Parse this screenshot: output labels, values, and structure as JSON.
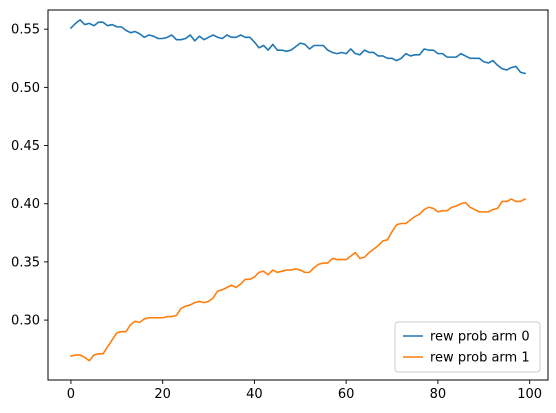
{
  "chart_data": {
    "type": "line",
    "title": "",
    "xlabel": "",
    "ylabel": "",
    "xlim": [
      -5,
      104
    ],
    "ylim": [
      0.2485,
      0.5665
    ],
    "xticks": [
      0,
      20,
      40,
      60,
      80,
      100
    ],
    "xtick_labels": [
      "0",
      "20",
      "40",
      "60",
      "80",
      "100"
    ],
    "yticks": [
      0.3,
      0.35,
      0.4,
      0.45,
      0.5,
      0.55
    ],
    "ytick_labels": [
      "0.30",
      "0.35",
      "0.40",
      "0.45",
      "0.50",
      "0.55"
    ],
    "legend": {
      "location": "lower-right"
    },
    "grid": false,
    "series": [
      {
        "name": "rew prob arm 0",
        "color": "#1f77b4",
        "x": [
          0,
          1,
          2,
          3,
          4,
          5,
          6,
          7,
          8,
          9,
          10,
          11,
          12,
          13,
          14,
          15,
          16,
          17,
          18,
          19,
          20,
          21,
          22,
          23,
          24,
          25,
          26,
          27,
          28,
          29,
          30,
          31,
          32,
          33,
          34,
          35,
          36,
          37,
          38,
          39,
          40,
          41,
          42,
          43,
          44,
          45,
          46,
          47,
          48,
          49,
          50,
          51,
          52,
          53,
          54,
          55,
          56,
          57,
          58,
          59,
          60,
          61,
          62,
          63,
          64,
          65,
          66,
          67,
          68,
          69,
          70,
          71,
          72,
          73,
          74,
          75,
          76,
          77,
          78,
          79,
          80,
          81,
          82,
          83,
          84,
          85,
          86,
          87,
          88,
          89,
          90,
          91,
          92,
          93,
          94,
          95,
          96,
          97,
          98,
          99
        ],
        "values": [
          0.551,
          0.555,
          0.558,
          0.554,
          0.555,
          0.553,
          0.556,
          0.556,
          0.553,
          0.554,
          0.552,
          0.552,
          0.549,
          0.547,
          0.548,
          0.546,
          0.543,
          0.545,
          0.544,
          0.542,
          0.542,
          0.543,
          0.545,
          0.541,
          0.541,
          0.542,
          0.545,
          0.54,
          0.544,
          0.541,
          0.543,
          0.545,
          0.543,
          0.542,
          0.545,
          0.543,
          0.543,
          0.545,
          0.543,
          0.543,
          0.539,
          0.534,
          0.536,
          0.532,
          0.537,
          0.532,
          0.532,
          0.531,
          0.532,
          0.535,
          0.538,
          0.537,
          0.533,
          0.536,
          0.536,
          0.536,
          0.532,
          0.53,
          0.529,
          0.53,
          0.529,
          0.533,
          0.529,
          0.528,
          0.532,
          0.53,
          0.53,
          0.527,
          0.527,
          0.525,
          0.525,
          0.523,
          0.525,
          0.529,
          0.527,
          0.528,
          0.528,
          0.533,
          0.532,
          0.532,
          0.529,
          0.529,
          0.526,
          0.526,
          0.526,
          0.529,
          0.527,
          0.525,
          0.525,
          0.525,
          0.522,
          0.521,
          0.523,
          0.519,
          0.516,
          0.515,
          0.517,
          0.518,
          0.513,
          0.512
        ]
      },
      {
        "name": "rew prob arm 1",
        "color": "#ff7f0e",
        "x": [
          0,
          1,
          2,
          3,
          4,
          5,
          6,
          7,
          8,
          9,
          10,
          11,
          12,
          13,
          14,
          15,
          16,
          17,
          18,
          19,
          20,
          21,
          22,
          23,
          24,
          25,
          26,
          27,
          28,
          29,
          30,
          31,
          32,
          33,
          34,
          35,
          36,
          37,
          38,
          39,
          40,
          41,
          42,
          43,
          44,
          45,
          46,
          47,
          48,
          49,
          50,
          51,
          52,
          53,
          54,
          55,
          56,
          57,
          58,
          59,
          60,
          61,
          62,
          63,
          64,
          65,
          66,
          67,
          68,
          69,
          70,
          71,
          72,
          73,
          74,
          75,
          76,
          77,
          78,
          79,
          80,
          81,
          82,
          83,
          84,
          85,
          86,
          87,
          88,
          89,
          90,
          91,
          92,
          93,
          94,
          95,
          96,
          97,
          98,
          99
        ],
        "values": [
          0.269,
          0.27,
          0.27,
          0.268,
          0.265,
          0.27,
          0.271,
          0.271,
          0.277,
          0.283,
          0.289,
          0.29,
          0.29,
          0.296,
          0.299,
          0.298,
          0.301,
          0.302,
          0.302,
          0.302,
          0.302,
          0.303,
          0.303,
          0.304,
          0.31,
          0.312,
          0.313,
          0.315,
          0.316,
          0.315,
          0.316,
          0.319,
          0.325,
          0.326,
          0.328,
          0.33,
          0.328,
          0.331,
          0.335,
          0.335,
          0.337,
          0.341,
          0.342,
          0.339,
          0.343,
          0.341,
          0.342,
          0.343,
          0.343,
          0.344,
          0.343,
          0.341,
          0.341,
          0.345,
          0.348,
          0.349,
          0.349,
          0.353,
          0.352,
          0.352,
          0.352,
          0.355,
          0.358,
          0.353,
          0.354,
          0.358,
          0.361,
          0.364,
          0.368,
          0.369,
          0.376,
          0.382,
          0.383,
          0.383,
          0.386,
          0.389,
          0.391,
          0.395,
          0.397,
          0.396,
          0.393,
          0.394,
          0.394,
          0.397,
          0.398,
          0.4,
          0.401,
          0.397,
          0.395,
          0.393,
          0.393,
          0.393,
          0.395,
          0.396,
          0.402,
          0.402,
          0.404,
          0.402,
          0.402,
          0.404
        ]
      }
    ]
  }
}
